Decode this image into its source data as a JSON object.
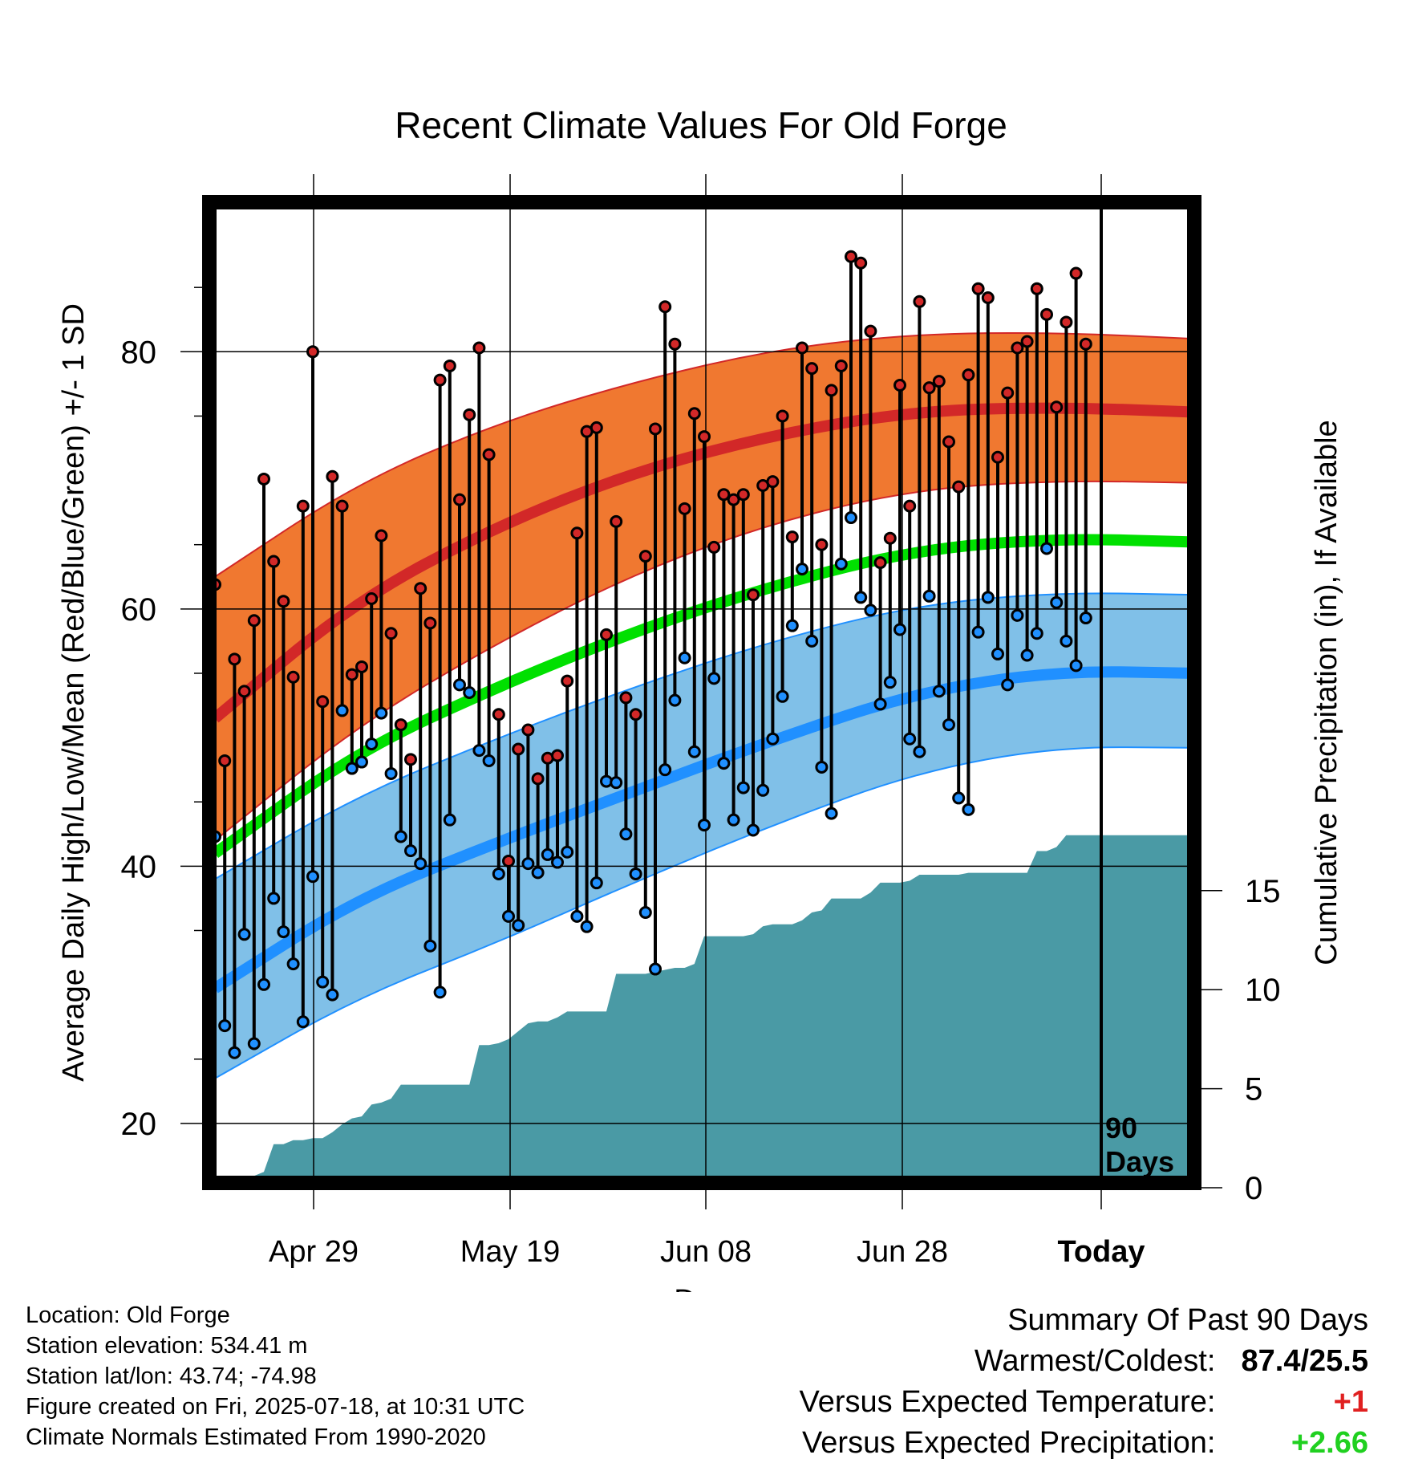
{
  "chart_data": {
    "type": "line",
    "title": "Recent Climate Values For Old Forge",
    "xlabel": "Day",
    "ylabel": "Average Daily High/Low/Mean (Red/Blue/Green) +/- 1 SD",
    "y2label": "Cumulative Precipitation (in), If Available",
    "x_tick_labels": [
      "Apr 29",
      "May 19",
      "Jun 08",
      "Jun 28",
      "Today"
    ],
    "y_ticks": [
      20,
      40,
      60,
      80
    ],
    "y2_ticks": [
      0,
      5,
      10,
      15
    ],
    "ylim": [
      15,
      92
    ],
    "y2lim": [
      0,
      50
    ],
    "days_marker": "90 Days",
    "colors": {
      "high_band": "#f07830",
      "high_mean": "#d22828",
      "low_band": "#80c0e8",
      "low_mean": "#2090ff",
      "normal_mean": "#00e000",
      "precip": "#4a9aa5"
    },
    "normals": {
      "high_mean": [
        51.5,
        60.6,
        66.4,
        70.7,
        73.6,
        75.4,
        75.7,
        75.3
      ],
      "high_upper": [
        62.5,
        69.7,
        74.4,
        77.7,
        80.2,
        81.4,
        81.5,
        81.0
      ],
      "high_lower": [
        42.0,
        50.8,
        57.3,
        62.8,
        66.8,
        69.3,
        70.0,
        69.8
      ],
      "mean": [
        41.0,
        48.8,
        53.9,
        58.3,
        61.9,
        64.6,
        65.5,
        65.2
      ],
      "low_mean": [
        30.5,
        37.4,
        41.8,
        45.9,
        49.9,
        53.5,
        55.2,
        55.0
      ],
      "low_upper": [
        39.0,
        45.4,
        49.9,
        54.0,
        57.6,
        60.3,
        61.3,
        61.1
      ],
      "low_lower": [
        23.5,
        29.7,
        34.0,
        38.8,
        43.3,
        47.3,
        49.3,
        49.2
      ]
    },
    "series": [
      {
        "name": "High",
        "values": [
          61.9,
          48.2,
          56.1,
          53.6,
          59.1,
          70.1,
          63.7,
          60.6,
          54.7,
          68.0,
          80.0,
          52.8,
          70.3,
          68.0,
          54.9,
          55.5,
          60.8,
          65.7,
          58.1,
          51.0,
          48.3,
          61.6,
          58.9,
          77.8,
          78.9,
          68.5,
          75.1,
          80.3,
          72.0,
          51.8,
          40.4,
          49.1,
          50.6,
          46.8,
          48.4,
          48.6,
          54.4,
          65.9,
          73.8,
          74.1,
          58.0,
          66.8,
          53.1,
          51.8,
          64.1,
          74.0,
          83.5,
          80.6,
          67.8,
          75.2,
          73.4,
          64.8,
          68.9,
          68.5,
          68.9,
          61.1,
          69.6,
          69.9,
          75.0,
          65.6,
          80.3,
          78.7,
          65.0,
          77.0,
          78.9,
          87.4,
          86.9,
          81.6,
          63.6,
          65.5,
          77.4,
          68.0,
          83.9,
          77.2,
          77.7,
          73.0,
          69.5,
          78.2,
          84.9,
          84.2,
          71.8,
          76.8,
          80.3,
          80.8,
          84.9,
          82.9,
          75.7,
          82.3,
          86.1,
          80.6
        ]
      },
      {
        "name": "Low",
        "values": [
          42.3,
          27.6,
          25.5,
          34.7,
          26.2,
          30.8,
          37.5,
          34.9,
          32.4,
          27.9,
          39.2,
          31.0,
          30.0,
          52.1,
          47.6,
          48.1,
          49.5,
          51.9,
          47.2,
          42.3,
          41.2,
          40.2,
          33.8,
          30.2,
          43.6,
          54.1,
          53.5,
          49.0,
          48.2,
          39.4,
          36.1,
          35.4,
          40.2,
          39.5,
          40.9,
          40.3,
          41.1,
          36.1,
          35.3,
          38.7,
          46.6,
          46.5,
          42.5,
          39.4,
          36.4,
          32.0,
          47.5,
          52.9,
          56.2,
          48.9,
          43.2,
          54.6,
          48.0,
          43.6,
          46.1,
          42.8,
          45.9,
          49.9,
          53.2,
          58.7,
          63.1,
          57.5,
          47.7,
          44.1,
          63.5,
          67.1,
          60.9,
          59.9,
          52.6,
          54.3,
          58.4,
          49.9,
          48.9,
          61.0,
          53.6,
          51.0,
          45.3,
          44.4,
          58.2,
          60.9,
          56.5,
          54.1,
          59.5,
          56.4,
          58.1,
          64.7,
          60.5,
          57.5,
          55.6,
          59.3
        ]
      },
      {
        "name": "Precipitation",
        "values": [
          0.4,
          0.6,
          0.6,
          0.6,
          0.6,
          0.8,
          2.2,
          2.2,
          2.4,
          2.4,
          2.5,
          2.5,
          2.8,
          3.2,
          3.5,
          3.6,
          4.2,
          4.3,
          4.5,
          5.2,
          5.2,
          5.2,
          5.2,
          5.2,
          5.2,
          5.2,
          5.2,
          7.2,
          7.2,
          7.3,
          7.5,
          7.9,
          8.3,
          8.4,
          8.4,
          8.6,
          8.9,
          8.9,
          8.9,
          8.9,
          8.9,
          10.8,
          10.8,
          10.8,
          10.8,
          10.9,
          11.0,
          11.1,
          11.1,
          11.3,
          12.7,
          12.7,
          12.7,
          12.7,
          12.7,
          12.8,
          13.2,
          13.3,
          13.3,
          13.3,
          13.5,
          13.9,
          14.0,
          14.6,
          14.6,
          14.6,
          14.6,
          14.9,
          15.4,
          15.4,
          15.4,
          15.5,
          15.8,
          15.8,
          15.8,
          15.8,
          15.8,
          15.9,
          15.9,
          15.9,
          15.9,
          15.9,
          15.9,
          15.9,
          17.0,
          17.0,
          17.2,
          17.8,
          17.8,
          17.8
        ]
      }
    ]
  },
  "info": {
    "location": "Location: Old Forge",
    "elevation": "Station elevation: 534.41 m",
    "latlon": "Station lat/lon: 43.74; -74.98",
    "created": "Figure created on Fri, 2025-07-18, at 10:31 UTC",
    "normals": "Climate Normals Estimated From 1990-2020"
  },
  "summary": {
    "title": "Summary Of Past 90 Days",
    "warm_label": "Warmest/Coldest:",
    "warm_value": "87.4/25.5",
    "temp_label": "Versus Expected Temperature:",
    "temp_value": "+1",
    "temp_color": "#e02020",
    "precip_label": "Versus Expected Precipitation:",
    "precip_value": "+2.66",
    "precip_color": "#20d020"
  }
}
